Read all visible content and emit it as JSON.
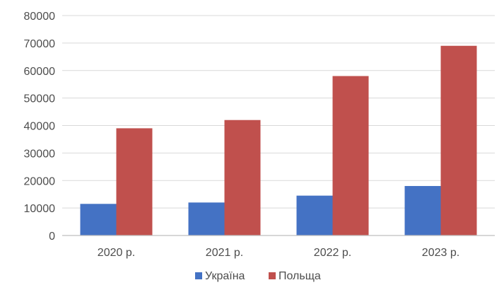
{
  "chart_data": {
    "type": "bar",
    "categories": [
      "2020 р.",
      "2021 р.",
      "2022 р.",
      "2023 р."
    ],
    "series": [
      {
        "name": "Україна",
        "values": [
          11500,
          12000,
          14500,
          18000
        ],
        "color": "#4472c4"
      },
      {
        "name": "Польща",
        "values": [
          39000,
          42000,
          58000,
          69000
        ],
        "color": "#c0504d"
      }
    ],
    "ylim": [
      0,
      80000
    ],
    "yticks": [
      "0",
      "10000",
      "20000",
      "30000",
      "40000",
      "50000",
      "60000",
      "70000",
      "80000"
    ],
    "ytick_values": [
      0,
      10000,
      20000,
      30000,
      40000,
      50000,
      60000,
      70000,
      80000
    ],
    "grid": true,
    "legend_position": "bottom-center",
    "title": "",
    "xlabel": "",
    "ylabel": ""
  }
}
